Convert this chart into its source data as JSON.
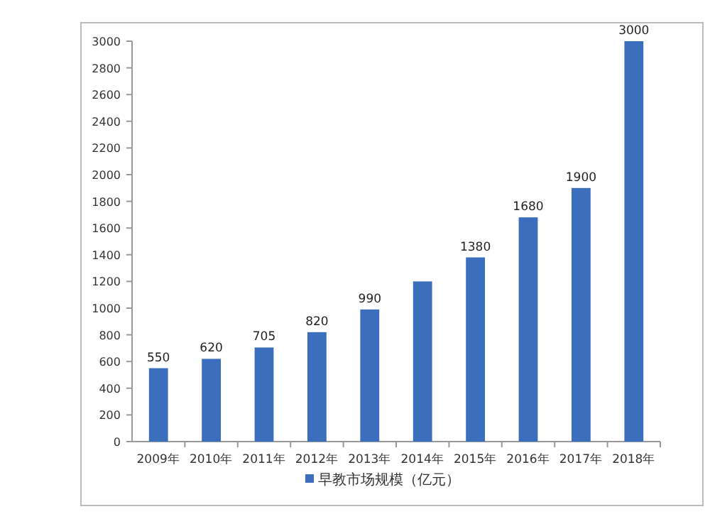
{
  "chart_data": {
    "type": "bar",
    "categories": [
      "2009年",
      "2010年",
      "2011年",
      "2012年",
      "2013年",
      "2014年",
      "2015年",
      "2016年",
      "2017年",
      "2018年"
    ],
    "series": [
      {
        "name": "早教市场规模（亿元）",
        "color": "#3b6fbe",
        "values": [
          550,
          620,
          705,
          820,
          990,
          1200,
          1380,
          1680,
          1900,
          3000
        ],
        "value_labels": [
          "550",
          "620",
          "705",
          "820",
          "990",
          null,
          "1380",
          "1680",
          "1900",
          "3000"
        ]
      }
    ],
    "ylim": [
      0,
      3000
    ],
    "yticks": [
      0,
      200,
      400,
      600,
      800,
      1000,
      1200,
      1400,
      1600,
      1800,
      2000,
      2200,
      2400,
      2600,
      2800,
      3000
    ],
    "grid": false,
    "legend": "bottom"
  }
}
